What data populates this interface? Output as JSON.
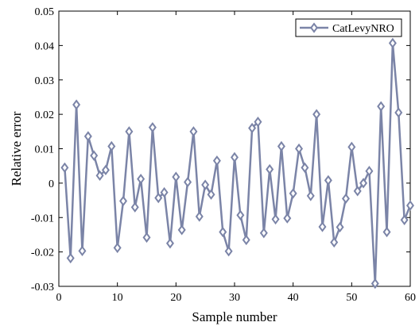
{
  "chart_data": {
    "type": "line",
    "title": "",
    "xlabel": "Sample number",
    "ylabel": "Relative error",
    "xlim": [
      0,
      60
    ],
    "ylim": [
      -0.03,
      0.05
    ],
    "xticks": [
      "0",
      "10",
      "20",
      "30",
      "40",
      "50",
      "60"
    ],
    "yticks": [
      "-0.03",
      "-0.02",
      "-0.01",
      "0",
      "0.01",
      "0.02",
      "0.03",
      "0.04",
      "0.05"
    ],
    "xtick_values": [
      0,
      10,
      20,
      30,
      40,
      50,
      60
    ],
    "ytick_values": [
      -0.03,
      -0.02,
      -0.01,
      0,
      0.01,
      0.02,
      0.03,
      0.04,
      0.05
    ],
    "grid": false,
    "legend_position": "top-right",
    "series": [
      {
        "name": "CatLevyNRO",
        "color": "#7b84a7",
        "marker": "diamond",
        "x": [
          1,
          2,
          3,
          4,
          5,
          6,
          7,
          8,
          9,
          10,
          11,
          12,
          13,
          14,
          15,
          16,
          17,
          18,
          19,
          20,
          21,
          22,
          23,
          24,
          25,
          26,
          27,
          28,
          29,
          30,
          31,
          32,
          33,
          34,
          35,
          36,
          37,
          38,
          39,
          40,
          41,
          42,
          43,
          44,
          45,
          46,
          47,
          48,
          49,
          50,
          51,
          52,
          53,
          54,
          55,
          56,
          57,
          58,
          59,
          60
        ],
        "values": [
          0.0045,
          -0.0218,
          0.0228,
          -0.0197,
          0.0136,
          0.008,
          0.0022,
          0.0038,
          0.0107,
          -0.0188,
          -0.0052,
          0.015,
          -0.007,
          0.0012,
          -0.0158,
          0.0162,
          -0.0043,
          -0.0027,
          -0.0175,
          0.0018,
          -0.0136,
          0.0003,
          0.015,
          -0.0097,
          -0.0005,
          -0.0033,
          0.0065,
          -0.0142,
          -0.0198,
          0.0075,
          -0.0093,
          -0.0165,
          0.016,
          0.0178,
          -0.0145,
          0.004,
          -0.0105,
          0.0107,
          -0.0102,
          -0.003,
          0.01,
          0.0045,
          -0.0037,
          0.02,
          -0.0127,
          0.0008,
          -0.0172,
          -0.0128,
          -0.0045,
          0.0105,
          -0.0023,
          0.0,
          0.0035,
          -0.0292,
          0.0223,
          -0.0142,
          0.0407,
          0.0205,
          -0.0107,
          -0.0065
        ]
      }
    ]
  }
}
